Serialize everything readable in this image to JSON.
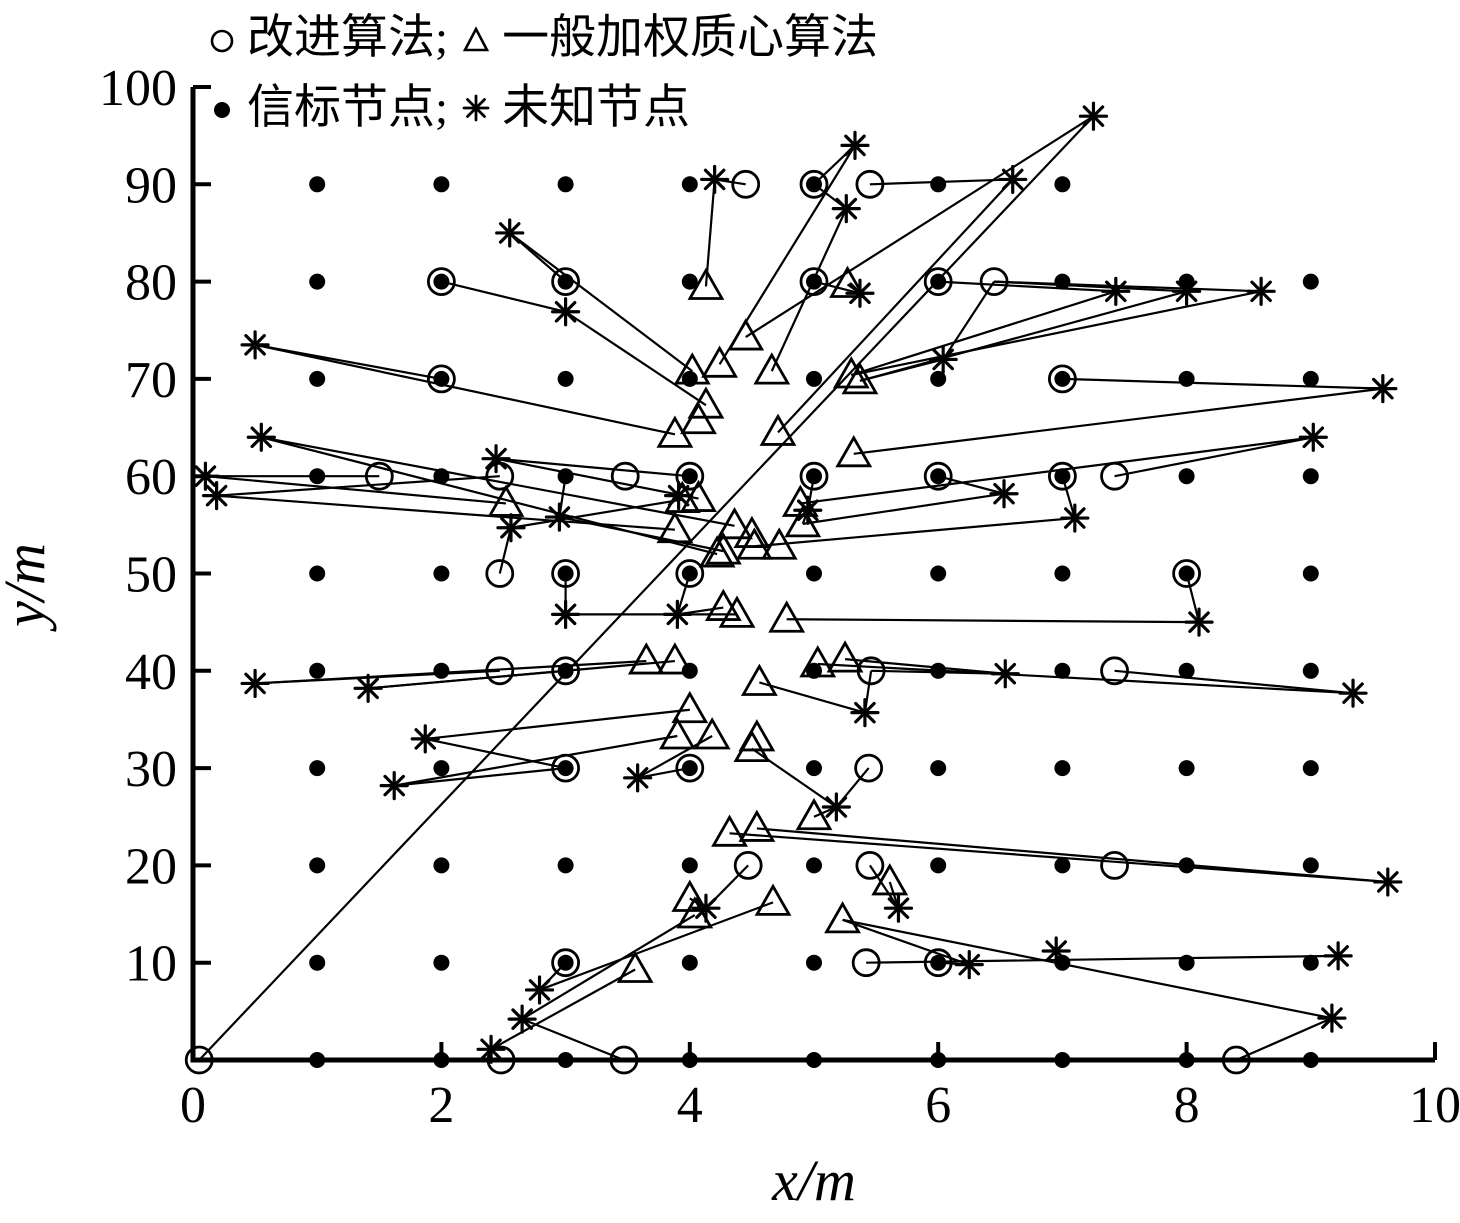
{
  "figure": {
    "background": "#ffffff",
    "ink": "#000000"
  },
  "legend": {
    "row1": [
      {
        "marker": "circle",
        "label": "改进算法;"
      },
      {
        "marker": "triangle",
        "label": "一般加权质心算法"
      }
    ],
    "row2": [
      {
        "marker": "dot",
        "label": "信标节点;"
      },
      {
        "marker": "asterisk",
        "label": "未知节点"
      }
    ]
  },
  "axes": {
    "xlabel": "x/m",
    "ylabel": "y/m",
    "xlim": [
      0,
      10
    ],
    "ylim": [
      0,
      100
    ],
    "x_ticks": [
      0,
      2,
      4,
      6,
      8,
      10
    ],
    "y_ticks": [
      10,
      20,
      30,
      40,
      50,
      60,
      70,
      80,
      90,
      100
    ]
  },
  "chart_data": {
    "type": "scatter",
    "title": "",
    "xlabel": "x/m",
    "ylabel": "y/m",
    "xlim": [
      0,
      10
    ],
    "ylim": [
      0,
      100
    ],
    "grid": false,
    "legend_position": "top-left",
    "beacon_grid": {
      "name": "信标节点",
      "marker": "dot",
      "x_values": [
        1,
        2,
        3,
        4,
        5,
        6,
        7,
        8,
        9
      ],
      "y_values": [
        0,
        10,
        20,
        30,
        40,
        50,
        60,
        70,
        80,
        90
      ],
      "missing": [
        [
          8,
          90
        ],
        [
          9,
          90
        ]
      ]
    },
    "series": [
      {
        "name": "未知节点",
        "marker": "asterisk",
        "points": [
          [
            7.25,
            97
          ],
          [
            5.33,
            94
          ],
          [
            4.2,
            90.5
          ],
          [
            6.6,
            90.5
          ],
          [
            5.26,
            87.5
          ],
          [
            2.55,
            85
          ],
          [
            5.37,
            78.8
          ],
          [
            3.0,
            76.9
          ],
          [
            0.5,
            73.5
          ],
          [
            6.04,
            72.0
          ],
          [
            7.43,
            79
          ],
          [
            8.0,
            79
          ],
          [
            8.6,
            79
          ],
          [
            9.58,
            69
          ],
          [
            9.02,
            64
          ],
          [
            0.55,
            64
          ],
          [
            2.44,
            61.8
          ],
          [
            0.1,
            60
          ],
          [
            0.19,
            58
          ],
          [
            6.53,
            58.2
          ],
          [
            7.1,
            55.7
          ],
          [
            2.95,
            55.8
          ],
          [
            2.56,
            54.7
          ],
          [
            3.91,
            58.0
          ],
          [
            4.95,
            56.5
          ],
          [
            3.0,
            45.8
          ],
          [
            3.9,
            45.8
          ],
          [
            8.1,
            45.0
          ],
          [
            0.5,
            38.7
          ],
          [
            1.41,
            38.2
          ],
          [
            6.54,
            39.7
          ],
          [
            9.34,
            37.7
          ],
          [
            5.41,
            35.7
          ],
          [
            1.87,
            33.0
          ],
          [
            1.62,
            28.2
          ],
          [
            3.58,
            29.0
          ],
          [
            5.18,
            26.0
          ],
          [
            9.62,
            18.3
          ],
          [
            4.13,
            15.6
          ],
          [
            5.68,
            15.6
          ],
          [
            6.25,
            9.8
          ],
          [
            2.79,
            7.2
          ],
          [
            2.65,
            4.2
          ],
          [
            2.4,
            1.1
          ],
          [
            6.95,
            11.2
          ],
          [
            9.22,
            10.7
          ],
          [
            9.17,
            4.3
          ]
        ]
      },
      {
        "name": "改进算法",
        "marker": "circle",
        "points": [
          [
            0.05,
            0
          ],
          [
            2.48,
            0
          ],
          [
            3.47,
            0
          ],
          [
            8.4,
            0
          ],
          [
            4.45,
            90
          ],
          [
            5.45,
            90
          ],
          [
            6.45,
            80
          ],
          [
            1.5,
            60
          ],
          [
            2.47,
            60
          ],
          [
            3.48,
            60
          ],
          [
            7.42,
            60
          ],
          [
            2.47,
            50
          ],
          [
            2.47,
            40
          ],
          [
            5.46,
            40
          ],
          [
            7.42,
            40
          ],
          [
            5.44,
            30
          ],
          [
            4.47,
            20
          ],
          [
            5.45,
            20
          ],
          [
            7.42,
            20
          ],
          [
            5.42,
            10
          ],
          [
            5,
            90
          ],
          [
            2,
            80
          ],
          [
            3,
            80
          ],
          [
            5,
            80
          ],
          [
            6,
            80
          ],
          [
            2,
            70
          ],
          [
            7,
            70
          ],
          [
            4,
            60
          ],
          [
            5,
            60
          ],
          [
            6,
            60
          ],
          [
            7,
            60
          ],
          [
            3,
            50
          ],
          [
            4,
            50
          ],
          [
            8,
            50
          ],
          [
            3,
            40
          ],
          [
            3,
            30
          ],
          [
            4,
            30
          ],
          [
            3,
            10
          ],
          [
            6,
            10
          ]
        ]
      },
      {
        "name": "一般加权质心算法",
        "marker": "triangle",
        "points": [
          [
            4.13,
            79.5
          ],
          [
            5.27,
            79.7
          ],
          [
            4.45,
            74.3
          ],
          [
            4.24,
            71.5
          ],
          [
            4.02,
            70.8
          ],
          [
            4.66,
            70.8
          ],
          [
            5.3,
            70.4
          ],
          [
            5.37,
            69.8
          ],
          [
            4.13,
            67.3
          ],
          [
            4.07,
            65.7
          ],
          [
            3.88,
            64.3
          ],
          [
            4.71,
            64.5
          ],
          [
            5.32,
            62.3
          ],
          [
            2.52,
            57.2
          ],
          [
            3.94,
            57.6
          ],
          [
            4.07,
            57.7
          ],
          [
            4.89,
            57.2
          ],
          [
            4.91,
            55.1
          ],
          [
            3.88,
            54.5
          ],
          [
            4.36,
            54.9
          ],
          [
            4.5,
            54.0
          ],
          [
            4.27,
            52.3
          ],
          [
            4.52,
            52.8
          ],
          [
            4.72,
            52.8
          ],
          [
            4.22,
            52.0
          ],
          [
            4.27,
            46.5
          ],
          [
            4.38,
            45.8
          ],
          [
            4.78,
            45.3
          ],
          [
            3.65,
            41.0
          ],
          [
            3.88,
            41.0
          ],
          [
            5.03,
            40.7
          ],
          [
            5.25,
            41.2
          ],
          [
            4.56,
            38.8
          ],
          [
            4.0,
            36.0
          ],
          [
            3.9,
            33.3
          ],
          [
            4.18,
            33.3
          ],
          [
            4.54,
            33.1
          ],
          [
            4.5,
            32.0
          ],
          [
            5.0,
            25.0
          ],
          [
            4.32,
            23.3
          ],
          [
            4.54,
            23.8
          ],
          [
            5.61,
            18.3
          ],
          [
            4.67,
            16.2
          ],
          [
            4.0,
            16.6
          ],
          [
            4.04,
            14.9
          ],
          [
            5.23,
            14.4
          ],
          [
            3.56,
            9.3
          ]
        ]
      }
    ],
    "error_lines": [
      [
        7.25,
        97,
        0.05,
        0
      ],
      [
        7.25,
        97,
        4.45,
        74.3
      ],
      [
        5.33,
        94,
        5,
        90
      ],
      [
        5.33,
        94,
        4.24,
        71.5
      ],
      [
        4.2,
        90.5,
        4.45,
        90
      ],
      [
        4.2,
        90.5,
        4.13,
        79.5
      ],
      [
        6.6,
        90.5,
        5.45,
        90
      ],
      [
        6.6,
        90.5,
        4.71,
        64.5
      ],
      [
        2.55,
        85,
        3,
        80
      ],
      [
        2.55,
        85,
        4.02,
        70.8
      ],
      [
        5.26,
        87.5,
        5,
        90
      ],
      [
        5.26,
        87.5,
        4.66,
        70.8
      ],
      [
        5.37,
        78.8,
        5,
        80
      ],
      [
        5.37,
        78.8,
        5.27,
        79.7
      ],
      [
        3.0,
        76.9,
        2,
        80
      ],
      [
        3.0,
        76.9,
        4.13,
        67.3
      ],
      [
        0.5,
        73.5,
        2,
        70
      ],
      [
        0.5,
        73.5,
        3.88,
        64.3
      ],
      [
        6.04,
        72,
        6.45,
        80
      ],
      [
        6.04,
        72,
        5.37,
        69.8
      ],
      [
        7.43,
        79,
        6,
        80
      ],
      [
        7.43,
        79,
        5.3,
        70.4
      ],
      [
        8.0,
        79,
        6.45,
        80
      ],
      [
        8.0,
        79,
        5.37,
        69.8
      ],
      [
        8.6,
        79,
        6.45,
        80
      ],
      [
        8.6,
        79,
        5.3,
        70.4
      ],
      [
        9.58,
        69,
        7,
        70
      ],
      [
        9.58,
        69,
        5.32,
        62.3
      ],
      [
        9.02,
        64,
        7.42,
        60
      ],
      [
        9.02,
        64,
        4.89,
        57.2
      ],
      [
        0.55,
        64,
        4.36,
        54.9
      ],
      [
        0.55,
        64,
        4.22,
        52
      ],
      [
        2.44,
        61.8,
        4,
        60
      ],
      [
        2.44,
        61.8,
        4.07,
        57.7
      ],
      [
        0.1,
        60,
        1.5,
        60
      ],
      [
        0.1,
        60,
        2.52,
        57.2
      ],
      [
        0.19,
        58,
        2.47,
        60
      ],
      [
        0.19,
        58,
        3.88,
        54.5
      ],
      [
        6.53,
        58.2,
        6,
        60
      ],
      [
        6.53,
        58.2,
        4.91,
        55.1
      ],
      [
        7.1,
        55.7,
        7,
        60
      ],
      [
        7.1,
        55.7,
        4.52,
        52.8
      ],
      [
        2.95,
        55.8,
        3,
        60
      ],
      [
        2.95,
        55.8,
        4.27,
        52.3
      ],
      [
        2.56,
        54.7,
        2.47,
        50
      ],
      [
        2.56,
        54.7,
        3.94,
        57.6
      ],
      [
        4.95,
        56.5,
        5,
        60
      ],
      [
        4.95,
        56.5,
        4.91,
        55.1
      ],
      [
        3.0,
        45.8,
        3,
        50
      ],
      [
        3.0,
        45.8,
        4.38,
        45.8
      ],
      [
        3.9,
        45.8,
        4,
        50
      ],
      [
        3.9,
        45.8,
        4.27,
        46.5
      ],
      [
        8.1,
        45,
        8,
        50
      ],
      [
        8.1,
        45,
        4.78,
        45.3
      ],
      [
        0.5,
        38.7,
        2.47,
        40
      ],
      [
        0.5,
        38.7,
        3.65,
        41
      ],
      [
        1.41,
        38.2,
        3,
        40
      ],
      [
        1.41,
        38.2,
        3.88,
        41
      ],
      [
        6.54,
        39.7,
        5.46,
        40
      ],
      [
        6.54,
        39.7,
        5.25,
        41.2
      ],
      [
        9.34,
        37.7,
        7.42,
        40
      ],
      [
        9.34,
        37.7,
        5.03,
        40.7
      ],
      [
        5.41,
        35.7,
        5.46,
        40
      ],
      [
        5.41,
        35.7,
        4.56,
        38.8
      ],
      [
        1.87,
        33,
        3,
        30
      ],
      [
        1.87,
        33,
        4,
        36
      ],
      [
        1.62,
        28.2,
        3,
        30
      ],
      [
        1.62,
        28.2,
        3.9,
        33.3
      ],
      [
        3.58,
        29,
        4,
        30
      ],
      [
        3.58,
        29,
        4.18,
        33.3
      ],
      [
        5.18,
        26,
        5.44,
        30
      ],
      [
        5.18,
        26,
        4.5,
        32
      ],
      [
        5.18,
        26,
        5.0,
        25
      ],
      [
        9.62,
        18.3,
        4.54,
        23.8
      ],
      [
        9.62,
        18.3,
        4.32,
        23.3
      ],
      [
        5.68,
        15.6,
        5.45,
        20
      ],
      [
        5.68,
        15.6,
        5.61,
        18.3
      ],
      [
        4.13,
        15.6,
        4.47,
        20
      ],
      [
        4.13,
        15.6,
        4.0,
        16.6
      ],
      [
        2.79,
        7.2,
        3,
        10
      ],
      [
        2.79,
        7.2,
        4.67,
        16.2
      ],
      [
        2.65,
        4.2,
        3.47,
        0
      ],
      [
        2.65,
        4.2,
        4.04,
        14.9
      ],
      [
        2.4,
        1.1,
        2.48,
        0
      ],
      [
        2.4,
        1.1,
        3.56,
        9.3
      ],
      [
        6.25,
        9.8,
        6,
        10
      ],
      [
        6.25,
        9.8,
        5.23,
        14.4
      ],
      [
        9.22,
        10.7,
        5.42,
        10
      ],
      [
        9.17,
        4.3,
        8.4,
        0
      ],
      [
        9.17,
        4.3,
        5.23,
        14.4
      ]
    ]
  }
}
